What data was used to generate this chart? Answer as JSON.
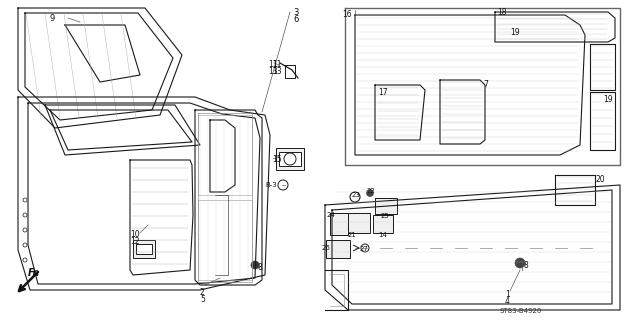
{
  "bg_color": "#ffffff",
  "lc": "#1a1a1a",
  "catalog_number": "ST83-B4920",
  "figsize": [
    6.37,
    3.2
  ],
  "dpi": 100
}
